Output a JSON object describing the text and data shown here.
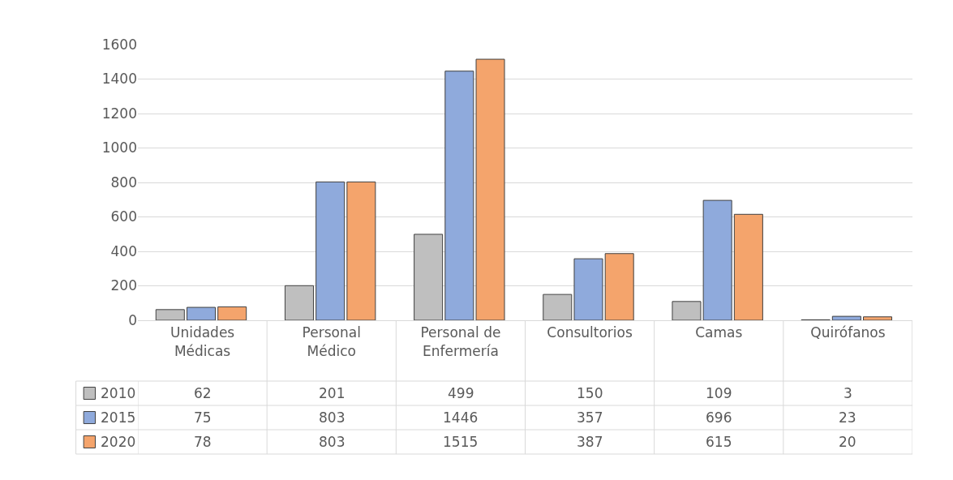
{
  "chart_data": {
    "type": "bar",
    "categories": [
      "Unidades Médicas",
      "Personal Médico",
      "Personal de Enfermería",
      "Consultorios",
      "Camas",
      "Quirófanos"
    ],
    "series": [
      {
        "name": "2010",
        "color": "#bfbfbf",
        "values": [
          62,
          201,
          499,
          150,
          109,
          3
        ]
      },
      {
        "name": "2015",
        "color": "#8faadc",
        "values": [
          75,
          803,
          1446,
          357,
          696,
          23
        ]
      },
      {
        "name": "2020",
        "color": "#f4a46c",
        "values": [
          78,
          803,
          1515,
          387,
          615,
          20
        ]
      }
    ],
    "ylim": [
      0,
      1600
    ],
    "yticks": [
      0,
      200,
      400,
      600,
      800,
      1000,
      1200,
      1400,
      1600
    ],
    "grid": "y",
    "legend": "left",
    "data_labels": true
  }
}
